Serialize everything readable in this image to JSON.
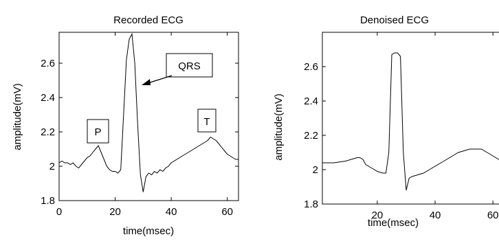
{
  "chart_data": [
    {
      "type": "line",
      "title": "Recorded ECG",
      "xlabel": "time(msec)",
      "ylabel": "amplitude(mV)",
      "xlim": [
        0,
        64
      ],
      "ylim": [
        1.8,
        2.78
      ],
      "xticks": [
        0,
        20,
        40,
        60
      ],
      "xtick_labels": [
        "0",
        "20",
        "40",
        "60"
      ],
      "yticks": [
        1.8,
        2.0,
        2.2,
        2.4,
        2.6
      ],
      "ytick_labels": [
        "1.8",
        "2",
        "2.2",
        "2.4",
        "2.6"
      ],
      "grid": false,
      "series": [
        {
          "x": [
            0,
            1,
            2,
            3,
            4,
            5,
            6,
            7,
            8,
            9,
            10,
            11,
            12,
            13,
            14,
            15,
            16,
            17,
            18,
            19,
            20,
            21,
            22,
            23,
            24,
            25,
            26,
            27,
            28,
            29,
            30,
            31,
            32,
            33,
            34,
            35,
            36,
            37,
            38,
            39,
            40,
            41,
            42,
            43,
            44,
            45,
            46,
            47,
            48,
            49,
            50,
            51,
            52,
            53,
            54,
            55,
            56,
            57,
            58,
            59,
            60,
            61,
            62,
            63,
            64
          ],
          "y": [
            2.02,
            2.03,
            2.02,
            2.02,
            2.01,
            2.02,
            2.0,
            1.99,
            2.01,
            2.03,
            2.05,
            2.06,
            2.08,
            2.1,
            2.12,
            2.08,
            2.04,
            2.0,
            1.98,
            1.97,
            1.97,
            1.96,
            1.98,
            2.3,
            2.62,
            2.74,
            2.77,
            2.6,
            2.25,
            1.95,
            1.85,
            1.94,
            1.96,
            1.95,
            1.97,
            1.96,
            1.98,
            1.97,
            1.99,
            2.0,
            2.02,
            2.03,
            2.04,
            2.05,
            2.06,
            2.07,
            2.08,
            2.09,
            2.1,
            2.11,
            2.12,
            2.13,
            2.14,
            2.15,
            2.17,
            2.16,
            2.15,
            2.13,
            2.11,
            2.09,
            2.07,
            2.06,
            2.05,
            2.04,
            2.04
          ]
        }
      ],
      "annotations": [
        {
          "label": "P",
          "x": 13.5,
          "y": 2.175
        },
        {
          "label": "QRS",
          "x": 37.5,
          "y": 2.645
        },
        {
          "label": "T",
          "x": 52.2,
          "y": 2.265,
          "arrow_to": null
        }
      ]
    },
    {
      "type": "line",
      "title": "Denoised ECG",
      "xlabel": "time(msec)",
      "ylabel": "amplitude(mV)",
      "xlim": [
        1,
        64
      ],
      "ylim": [
        1.8,
        2.8
      ],
      "xticks": [
        20,
        40,
        60
      ],
      "xtick_labels": [
        "20",
        "40",
        "60"
      ],
      "yticks": [
        1.8,
        2.0,
        2.2,
        2.4,
        2.6
      ],
      "ytick_labels": [
        "1.8",
        "2",
        "2.2",
        "2.4",
        "2.6"
      ],
      "grid": false,
      "series": [
        {
          "x": [
            1,
            3,
            5,
            7,
            9,
            11,
            13,
            14,
            15,
            16,
            18,
            20,
            22,
            23,
            24,
            25,
            26,
            27,
            28,
            29,
            30,
            31,
            32,
            34,
            36,
            38,
            40,
            42,
            44,
            46,
            48,
            50,
            52,
            54,
            56,
            58,
            60,
            62,
            64
          ],
          "y": [
            2.04,
            2.04,
            2.04,
            2.045,
            2.05,
            2.06,
            2.07,
            2.07,
            2.06,
            2.03,
            2.01,
            1.99,
            1.98,
            1.98,
            2.1,
            2.67,
            2.68,
            2.68,
            2.66,
            2.1,
            1.88,
            1.95,
            1.96,
            1.97,
            1.98,
            2.0,
            2.02,
            2.04,
            2.06,
            2.08,
            2.1,
            2.11,
            2.12,
            2.12,
            2.12,
            2.1,
            2.08,
            2.06,
            2.05
          ]
        }
      ]
    }
  ],
  "charts": [
    {
      "annotations_text": {
        "p": "P",
        "qrs": "QRS",
        "t": "T"
      }
    }
  ]
}
